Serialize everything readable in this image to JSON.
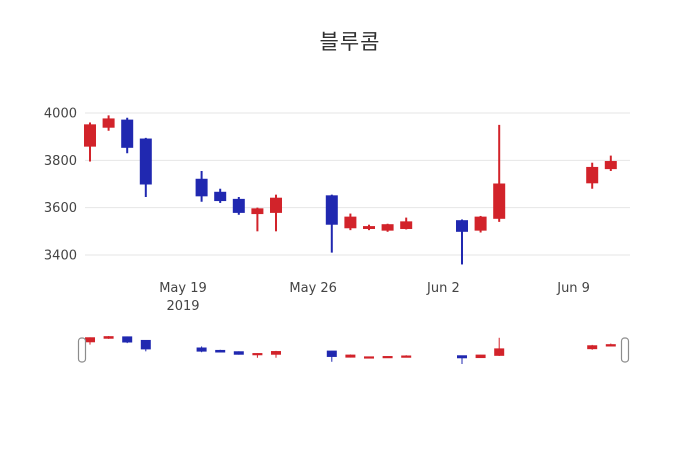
{
  "chart_data": {
    "type": "candlestick",
    "title": "블루콤",
    "background_color": "#ffffff",
    "increasing_color": "#d2232a",
    "decreasing_color": "#2028b0",
    "grid_color": "#e6e6e6",
    "axis_label_color": "#444444",
    "grid": "horizontal-only",
    "legend": "none",
    "rangeslider": true,
    "y_axis": {
      "ticks": [
        3400,
        3600,
        3800,
        4000
      ],
      "range": [
        3345,
        4055
      ]
    },
    "x_axis": {
      "ref_date": "2019-05-19",
      "ticks": [
        {
          "date": "2019-05-19",
          "label": "May 19",
          "sublabel": "2019"
        },
        {
          "date": "2019-05-26",
          "label": "May 26"
        },
        {
          "date": "2019-06-02",
          "label": "Jun 2"
        },
        {
          "date": "2019-06-09",
          "label": "Jun 9"
        }
      ]
    },
    "ohlc": [
      {
        "date": "2019-05-14",
        "open": 3860,
        "high": 3960,
        "low": 3795,
        "close": 3950
      },
      {
        "date": "2019-05-15",
        "open": 3940,
        "high": 3990,
        "low": 3925,
        "close": 3975
      },
      {
        "date": "2019-05-16",
        "open": 3970,
        "high": 3980,
        "low": 3830,
        "close": 3855
      },
      {
        "date": "2019-05-17",
        "open": 3890,
        "high": 3895,
        "low": 3645,
        "close": 3700
      },
      {
        "date": "2019-05-20",
        "open": 3720,
        "high": 3755,
        "low": 3625,
        "close": 3650
      },
      {
        "date": "2019-05-21",
        "open": 3665,
        "high": 3680,
        "low": 3620,
        "close": 3630
      },
      {
        "date": "2019-05-22",
        "open": 3635,
        "high": 3645,
        "low": 3570,
        "close": 3580
      },
      {
        "date": "2019-05-23",
        "open": 3575,
        "high": 3600,
        "low": 3500,
        "close": 3595
      },
      {
        "date": "2019-05-24",
        "open": 3580,
        "high": 3655,
        "low": 3500,
        "close": 3640
      },
      {
        "date": "2019-05-27",
        "open": 3650,
        "high": 3655,
        "low": 3410,
        "close": 3530
      },
      {
        "date": "2019-05-28",
        "open": 3515,
        "high": 3575,
        "low": 3505,
        "close": 3560
      },
      {
        "date": "2019-05-29",
        "open": 3512,
        "high": 3528,
        "low": 3505,
        "close": 3520
      },
      {
        "date": "2019-05-30",
        "open": 3505,
        "high": 3532,
        "low": 3498,
        "close": 3528
      },
      {
        "date": "2019-05-31",
        "open": 3512,
        "high": 3558,
        "low": 3508,
        "close": 3540
      },
      {
        "date": "2019-06-03",
        "open": 3545,
        "high": 3550,
        "low": 3360,
        "close": 3500
      },
      {
        "date": "2019-06-04",
        "open": 3505,
        "high": 3565,
        "low": 3495,
        "close": 3560
      },
      {
        "date": "2019-06-05",
        "open": 3555,
        "high": 3950,
        "low": 3540,
        "close": 3700
      },
      {
        "date": "2019-06-10",
        "open": 3705,
        "high": 3790,
        "low": 3680,
        "close": 3770
      },
      {
        "date": "2019-06-11",
        "open": 3765,
        "high": 3820,
        "low": 3755,
        "close": 3795
      }
    ]
  }
}
